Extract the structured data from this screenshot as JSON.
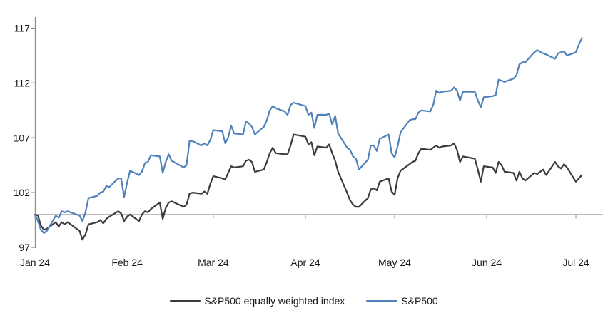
{
  "chart_data": {
    "type": "line",
    "title": "",
    "x_axis": {
      "tick_labels": [
        "Jan 24",
        "Feb 24",
        "Mar 24",
        "Apr 24",
        "May 24",
        "Jun 24",
        "Jul 24"
      ],
      "tick_days": [
        0,
        31,
        60,
        91,
        121,
        152,
        182
      ],
      "range_days": [
        0,
        191
      ],
      "axis_line_at_value": 100
    },
    "y_axis": {
      "tick_values": [
        97,
        102,
        107,
        112,
        117
      ],
      "range": [
        97,
        118
      ],
      "grid": "off"
    },
    "legend": {
      "position": "bottom-center"
    },
    "series": [
      {
        "name": "S&P500 equally weighted index",
        "color": "#3b3b3b",
        "points": [
          [
            0,
            100
          ],
          [
            1,
            99.9
          ],
          [
            2,
            99.0
          ],
          [
            3,
            98.6
          ],
          [
            4,
            98.7
          ],
          [
            7,
            99.3
          ],
          [
            8,
            98.9
          ],
          [
            9,
            99.3
          ],
          [
            10,
            99.1
          ],
          [
            11,
            99.3
          ],
          [
            15,
            98.5
          ],
          [
            16,
            97.7
          ],
          [
            17,
            98.2
          ],
          [
            18,
            99.1
          ],
          [
            21,
            99.3
          ],
          [
            22,
            99.5
          ],
          [
            23,
            99.2
          ],
          [
            24,
            99.6
          ],
          [
            25,
            99.8
          ],
          [
            28,
            100.3
          ],
          [
            29,
            100.1
          ],
          [
            30,
            99.4
          ],
          [
            31,
            99.8
          ],
          [
            32,
            100.0
          ],
          [
            35,
            99.4
          ],
          [
            36,
            100.0
          ],
          [
            37,
            100.3
          ],
          [
            38,
            100.2
          ],
          [
            39,
            100.5
          ],
          [
            42,
            101.1
          ],
          [
            43,
            99.6
          ],
          [
            44,
            100.6
          ],
          [
            45,
            101.1
          ],
          [
            46,
            101.2
          ],
          [
            50,
            100.7
          ],
          [
            51,
            100.9
          ],
          [
            52,
            101.9
          ],
          [
            53,
            102.0
          ],
          [
            56,
            101.9
          ],
          [
            57,
            102.1
          ],
          [
            58,
            101.9
          ],
          [
            59,
            102.8
          ],
          [
            60,
            103.5
          ],
          [
            63,
            103.3
          ],
          [
            64,
            103.2
          ],
          [
            65,
            103.8
          ],
          [
            66,
            104.4
          ],
          [
            67,
            104.3
          ],
          [
            70,
            104.4
          ],
          [
            71,
            104.9
          ],
          [
            72,
            105.0
          ],
          [
            73,
            104.8
          ],
          [
            74,
            103.9
          ],
          [
            77,
            104.1
          ],
          [
            78,
            104.8
          ],
          [
            79,
            105.6
          ],
          [
            80,
            106.1
          ],
          [
            81,
            105.6
          ],
          [
            84,
            105.5
          ],
          [
            85,
            105.5
          ],
          [
            86,
            106.3
          ],
          [
            87,
            107.3
          ],
          [
            91,
            107.1
          ],
          [
            92,
            106.4
          ],
          [
            93,
            106.6
          ],
          [
            94,
            105.4
          ],
          [
            95,
            106.2
          ],
          [
            98,
            106.1
          ],
          [
            99,
            106.4
          ],
          [
            100,
            105.6
          ],
          [
            101,
            104.9
          ],
          [
            102,
            103.9
          ],
          [
            105,
            102.0
          ],
          [
            106,
            101.3
          ],
          [
            107,
            100.9
          ],
          [
            108,
            100.7
          ],
          [
            109,
            100.7
          ],
          [
            112,
            101.5
          ],
          [
            113,
            102.3
          ],
          [
            114,
            102.4
          ],
          [
            115,
            102.2
          ],
          [
            116,
            103.0
          ],
          [
            119,
            103.3
          ],
          [
            120,
            102.1
          ],
          [
            121,
            101.8
          ],
          [
            122,
            103.3
          ],
          [
            123,
            104.0
          ],
          [
            126,
            104.6
          ],
          [
            127,
            104.8
          ],
          [
            128,
            104.9
          ],
          [
            129,
            105.6
          ],
          [
            130,
            106.0
          ],
          [
            133,
            105.9
          ],
          [
            134,
            106.1
          ],
          [
            135,
            106.3
          ],
          [
            136,
            106.1
          ],
          [
            137,
            106.2
          ],
          [
            140,
            106.3
          ],
          [
            141,
            106.5
          ],
          [
            142,
            105.9
          ],
          [
            143,
            104.8
          ],
          [
            144,
            105.3
          ],
          [
            148,
            105.1
          ],
          [
            149,
            104.1
          ],
          [
            150,
            103.0
          ],
          [
            151,
            104.4
          ],
          [
            154,
            104.3
          ],
          [
            155,
            103.8
          ],
          [
            156,
            104.8
          ],
          [
            157,
            104.5
          ],
          [
            158,
            103.9
          ],
          [
            161,
            103.8
          ],
          [
            162,
            103.1
          ],
          [
            163,
            103.9
          ],
          [
            164,
            103.3
          ],
          [
            165,
            103.1
          ],
          [
            168,
            103.8
          ],
          [
            169,
            103.7
          ],
          [
            171,
            104.1
          ],
          [
            172,
            103.6
          ],
          [
            175,
            104.8
          ],
          [
            176,
            104.4
          ],
          [
            177,
            104.2
          ],
          [
            178,
            104.6
          ],
          [
            179,
            104.3
          ],
          [
            182,
            103.0
          ],
          [
            183,
            103.3
          ],
          [
            184,
            103.6
          ]
        ]
      },
      {
        "name": "S&P500",
        "color": "#4f81bd",
        "points": [
          [
            0,
            100
          ],
          [
            1,
            99.4
          ],
          [
            2,
            98.6
          ],
          [
            3,
            98.3
          ],
          [
            4,
            98.5
          ],
          [
            7,
            99.9
          ],
          [
            8,
            99.7
          ],
          [
            9,
            100.3
          ],
          [
            10,
            100.2
          ],
          [
            11,
            100.3
          ],
          [
            15,
            99.9
          ],
          [
            16,
            99.4
          ],
          [
            17,
            100.2
          ],
          [
            18,
            101.5
          ],
          [
            21,
            101.7
          ],
          [
            22,
            102.0
          ],
          [
            23,
            102.1
          ],
          [
            24,
            102.6
          ],
          [
            25,
            102.5
          ],
          [
            28,
            103.3
          ],
          [
            29,
            103.3
          ],
          [
            30,
            101.6
          ],
          [
            31,
            102.9
          ],
          [
            32,
            104.0
          ],
          [
            35,
            103.6
          ],
          [
            36,
            103.9
          ],
          [
            37,
            104.7
          ],
          [
            38,
            104.8
          ],
          [
            39,
            105.4
          ],
          [
            42,
            105.3
          ],
          [
            43,
            103.8
          ],
          [
            44,
            104.8
          ],
          [
            45,
            105.5
          ],
          [
            46,
            104.9
          ],
          [
            50,
            104.3
          ],
          [
            51,
            104.5
          ],
          [
            52,
            106.7
          ],
          [
            53,
            106.7
          ],
          [
            56,
            106.3
          ],
          [
            57,
            106.5
          ],
          [
            58,
            106.3
          ],
          [
            59,
            106.8
          ],
          [
            60,
            107.7
          ],
          [
            63,
            107.6
          ],
          [
            64,
            106.5
          ],
          [
            65,
            107.0
          ],
          [
            66,
            108.1
          ],
          [
            67,
            107.4
          ],
          [
            70,
            107.3
          ],
          [
            71,
            108.5
          ],
          [
            72,
            108.3
          ],
          [
            73,
            108.0
          ],
          [
            74,
            107.3
          ],
          [
            77,
            108.0
          ],
          [
            78,
            108.6
          ],
          [
            79,
            109.5
          ],
          [
            80,
            109.9
          ],
          [
            81,
            109.7
          ],
          [
            84,
            109.4
          ],
          [
            85,
            109.1
          ],
          [
            86,
            110.0
          ],
          [
            87,
            110.2
          ],
          [
            91,
            109.9
          ],
          [
            92,
            109.1
          ],
          [
            93,
            109.3
          ],
          [
            94,
            107.9
          ],
          [
            95,
            109.1
          ],
          [
            98,
            109.1
          ],
          [
            99,
            109.2
          ],
          [
            100,
            108.2
          ],
          [
            101,
            109.0
          ],
          [
            102,
            107.4
          ],
          [
            105,
            106.1
          ],
          [
            106,
            105.9
          ],
          [
            107,
            105.3
          ],
          [
            108,
            105.1
          ],
          [
            109,
            104.1
          ],
          [
            112,
            105.0
          ],
          [
            113,
            106.3
          ],
          [
            114,
            106.3
          ],
          [
            115,
            105.8
          ],
          [
            116,
            106.9
          ],
          [
            119,
            107.3
          ],
          [
            120,
            105.6
          ],
          [
            121,
            105.2
          ],
          [
            122,
            106.2
          ],
          [
            123,
            107.5
          ],
          [
            126,
            108.6
          ],
          [
            127,
            108.7
          ],
          [
            128,
            108.7
          ],
          [
            129,
            109.3
          ],
          [
            130,
            109.5
          ],
          [
            133,
            109.4
          ],
          [
            134,
            110.0
          ],
          [
            135,
            111.3
          ],
          [
            136,
            111.1
          ],
          [
            137,
            111.2
          ],
          [
            140,
            111.3
          ],
          [
            141,
            111.6
          ],
          [
            142,
            111.3
          ],
          [
            143,
            110.4
          ],
          [
            144,
            111.2
          ],
          [
            148,
            111.2
          ],
          [
            149,
            110.4
          ],
          [
            150,
            109.8
          ],
          [
            151,
            110.7
          ],
          [
            154,
            110.8
          ],
          [
            155,
            110.9
          ],
          [
            156,
            112.3
          ],
          [
            157,
            112.2
          ],
          [
            158,
            112.1
          ],
          [
            161,
            112.4
          ],
          [
            162,
            112.7
          ],
          [
            163,
            113.7
          ],
          [
            164,
            113.9
          ],
          [
            165,
            113.9
          ],
          [
            168,
            114.8
          ],
          [
            169,
            115.0
          ],
          [
            171,
            114.7
          ],
          [
            172,
            114.6
          ],
          [
            175,
            114.2
          ],
          [
            176,
            114.7
          ],
          [
            177,
            114.8
          ],
          [
            178,
            114.9
          ],
          [
            179,
            114.5
          ],
          [
            182,
            114.8
          ],
          [
            183,
            115.5
          ],
          [
            184,
            116.1
          ]
        ]
      }
    ]
  },
  "colors": {
    "background": "#ffffff",
    "y_axis_line": "#8c8c8c",
    "x_axis_line": "#a6a6a6",
    "tick_label_text": "#1a1a1a"
  }
}
